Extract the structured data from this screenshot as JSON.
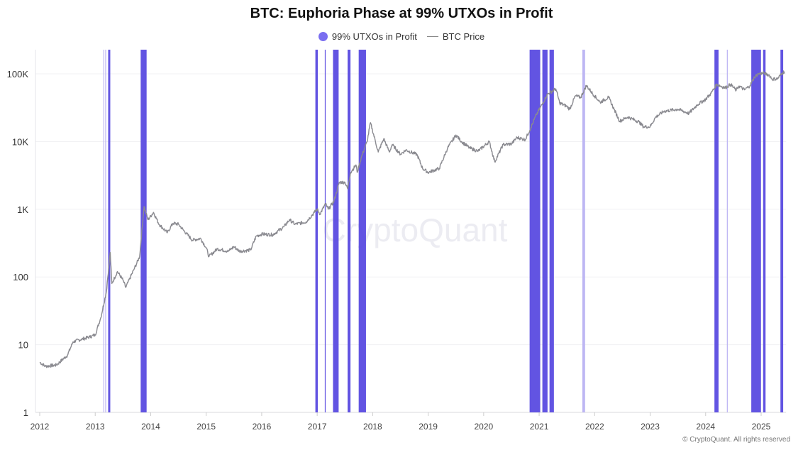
{
  "chart_data": {
    "type": "line",
    "title": "BTC: Euphoria Phase at 99% UTXOs in Profit",
    "y_scale": "log",
    "ylim": [
      1,
      150000
    ],
    "xlim": [
      2012.0,
      2025.45
    ],
    "grid": true,
    "legend_placement": "top-center",
    "y_ticks": [
      {
        "v": 1,
        "label": "1"
      },
      {
        "v": 10,
        "label": "10"
      },
      {
        "v": 100,
        "label": "100"
      },
      {
        "v": 1000,
        "label": "1K"
      },
      {
        "v": 10000,
        "label": "10K"
      },
      {
        "v": 100000,
        "label": "100K"
      }
    ],
    "x_ticks": [
      "2012",
      "2013",
      "2014",
      "2015",
      "2016",
      "2017",
      "2018",
      "2019",
      "2020",
      "2021",
      "2022",
      "2023",
      "2024",
      "2025"
    ],
    "colors": {
      "bands": "#5a4be0",
      "bands_light": "#b9b2f2",
      "price": "#8a8a90",
      "legend_dot": "#7a6ef0"
    },
    "series": [
      {
        "name": "99% UTXOs in Profit",
        "kind": "periods",
        "periods": [
          {
            "start": "2013-02-24",
            "end": "2013-02-28",
            "light": true
          },
          {
            "start": "2013-03-08",
            "end": "2013-03-10",
            "light": true
          },
          {
            "start": "2013-03-27",
            "end": "2013-04-10",
            "light": false
          },
          {
            "start": "2013-10-27",
            "end": "2013-12-05",
            "light": false
          },
          {
            "start": "2016-12-20",
            "end": "2017-01-05",
            "light": false
          },
          {
            "start": "2017-02-20",
            "end": "2017-02-25",
            "light": false
          },
          {
            "start": "2017-04-15",
            "end": "2017-05-22",
            "light": false
          },
          {
            "start": "2017-07-20",
            "end": "2017-08-08",
            "light": false
          },
          {
            "start": "2017-10-01",
            "end": "2017-11-18",
            "light": false
          },
          {
            "start": "2020-10-30",
            "end": "2021-01-08",
            "light": false
          },
          {
            "start": "2021-01-22",
            "end": "2021-02-25",
            "light": false
          },
          {
            "start": "2021-03-10",
            "end": "2021-04-08",
            "light": false
          },
          {
            "start": "2021-10-12",
            "end": "2021-10-30",
            "light": true
          },
          {
            "start": "2024-02-28",
            "end": "2024-03-26",
            "light": false
          },
          {
            "start": "2024-05-20",
            "end": "2024-05-26",
            "light": true
          },
          {
            "start": "2024-10-28",
            "end": "2024-12-31",
            "light": false
          },
          {
            "start": "2025-01-14",
            "end": "2025-01-30",
            "light": false
          },
          {
            "start": "2025-05-08",
            "end": "2025-05-26",
            "light": false
          }
        ]
      },
      {
        "name": "BTC Price",
        "kind": "line",
        "points": [
          [
            2012.0,
            5.5
          ],
          [
            2012.1,
            4.8
          ],
          [
            2012.3,
            5
          ],
          [
            2012.5,
            7
          ],
          [
            2012.6,
            11
          ],
          [
            2012.75,
            12
          ],
          [
            2012.9,
            13
          ],
          [
            2013.0,
            14
          ],
          [
            2013.1,
            25
          ],
          [
            2013.2,
            60
          ],
          [
            2013.27,
            230
          ],
          [
            2013.3,
            80
          ],
          [
            2013.4,
            120
          ],
          [
            2013.5,
            90
          ],
          [
            2013.55,
            70
          ],
          [
            2013.7,
            130
          ],
          [
            2013.8,
            200
          ],
          [
            2013.88,
            1100
          ],
          [
            2013.95,
            700
          ],
          [
            2014.05,
            900
          ],
          [
            2014.15,
            600
          ],
          [
            2014.3,
            450
          ],
          [
            2014.4,
            620
          ],
          [
            2014.5,
            600
          ],
          [
            2014.6,
            480
          ],
          [
            2014.75,
            350
          ],
          [
            2014.9,
            370
          ],
          [
            2015.0,
            270
          ],
          [
            2015.05,
            200
          ],
          [
            2015.2,
            260
          ],
          [
            2015.4,
            240
          ],
          [
            2015.5,
            280
          ],
          [
            2015.6,
            240
          ],
          [
            2015.8,
            250
          ],
          [
            2015.9,
            400
          ],
          [
            2016.0,
            430
          ],
          [
            2016.2,
            420
          ],
          [
            2016.4,
            550
          ],
          [
            2016.5,
            700
          ],
          [
            2016.6,
            600
          ],
          [
            2016.8,
            650
          ],
          [
            2016.95,
            900
          ],
          [
            2017.0,
            1000
          ],
          [
            2017.05,
            850
          ],
          [
            2017.15,
            1200
          ],
          [
            2017.2,
            1000
          ],
          [
            2017.3,
            1300
          ],
          [
            2017.4,
            2500
          ],
          [
            2017.5,
            2500
          ],
          [
            2017.55,
            2000
          ],
          [
            2017.6,
            3500
          ],
          [
            2017.7,
            4500
          ],
          [
            2017.72,
            3500
          ],
          [
            2017.8,
            6000
          ],
          [
            2017.9,
            10000
          ],
          [
            2017.96,
            19000
          ],
          [
            2018.05,
            10000
          ],
          [
            2018.1,
            7000
          ],
          [
            2018.2,
            11000
          ],
          [
            2018.3,
            7000
          ],
          [
            2018.35,
            9000
          ],
          [
            2018.5,
            6500
          ],
          [
            2018.6,
            7500
          ],
          [
            2018.8,
            6400
          ],
          [
            2018.9,
            4000
          ],
          [
            2019.0,
            3500
          ],
          [
            2019.2,
            4000
          ],
          [
            2019.35,
            8000
          ],
          [
            2019.5,
            12500
          ],
          [
            2019.6,
            10000
          ],
          [
            2019.75,
            8000
          ],
          [
            2019.9,
            7200
          ],
          [
            2020.1,
            10000
          ],
          [
            2020.2,
            5000
          ],
          [
            2020.35,
            9000
          ],
          [
            2020.5,
            9200
          ],
          [
            2020.6,
            11500
          ],
          [
            2020.75,
            10700
          ],
          [
            2020.85,
            16000
          ],
          [
            2020.95,
            25000
          ],
          [
            2021.05,
            35000
          ],
          [
            2021.15,
            50000
          ],
          [
            2021.3,
            60000
          ],
          [
            2021.37,
            37000
          ],
          [
            2021.5,
            33000
          ],
          [
            2021.55,
            30000
          ],
          [
            2021.65,
            47000
          ],
          [
            2021.75,
            45000
          ],
          [
            2021.85,
            67000
          ],
          [
            2022.0,
            47000
          ],
          [
            2022.1,
            38000
          ],
          [
            2022.25,
            45000
          ],
          [
            2022.35,
            30000
          ],
          [
            2022.45,
            20000
          ],
          [
            2022.6,
            23000
          ],
          [
            2022.8,
            19500
          ],
          [
            2022.88,
            16500
          ],
          [
            2023.0,
            16600
          ],
          [
            2023.1,
            23000
          ],
          [
            2023.25,
            28000
          ],
          [
            2023.5,
            30000
          ],
          [
            2023.7,
            26000
          ],
          [
            2023.85,
            35000
          ],
          [
            2024.0,
            42000
          ],
          [
            2024.1,
            52000
          ],
          [
            2024.2,
            70000
          ],
          [
            2024.35,
            62000
          ],
          [
            2024.45,
            70000
          ],
          [
            2024.55,
            57000
          ],
          [
            2024.6,
            66000
          ],
          [
            2024.7,
            58000
          ],
          [
            2024.8,
            67000
          ],
          [
            2024.88,
            90000
          ],
          [
            2024.95,
            100000
          ],
          [
            2025.05,
            102000
          ],
          [
            2025.15,
            95000
          ],
          [
            2025.2,
            83000
          ],
          [
            2025.3,
            85000
          ],
          [
            2025.38,
            103000
          ],
          [
            2025.42,
            108000
          ]
        ]
      }
    ]
  },
  "legend": {
    "bands_label": "99% UTXOs in Profit",
    "price_label": "BTC Price"
  },
  "watermark": "CryptoQuant",
  "footer": "© CryptoQuant. All rights reserved"
}
